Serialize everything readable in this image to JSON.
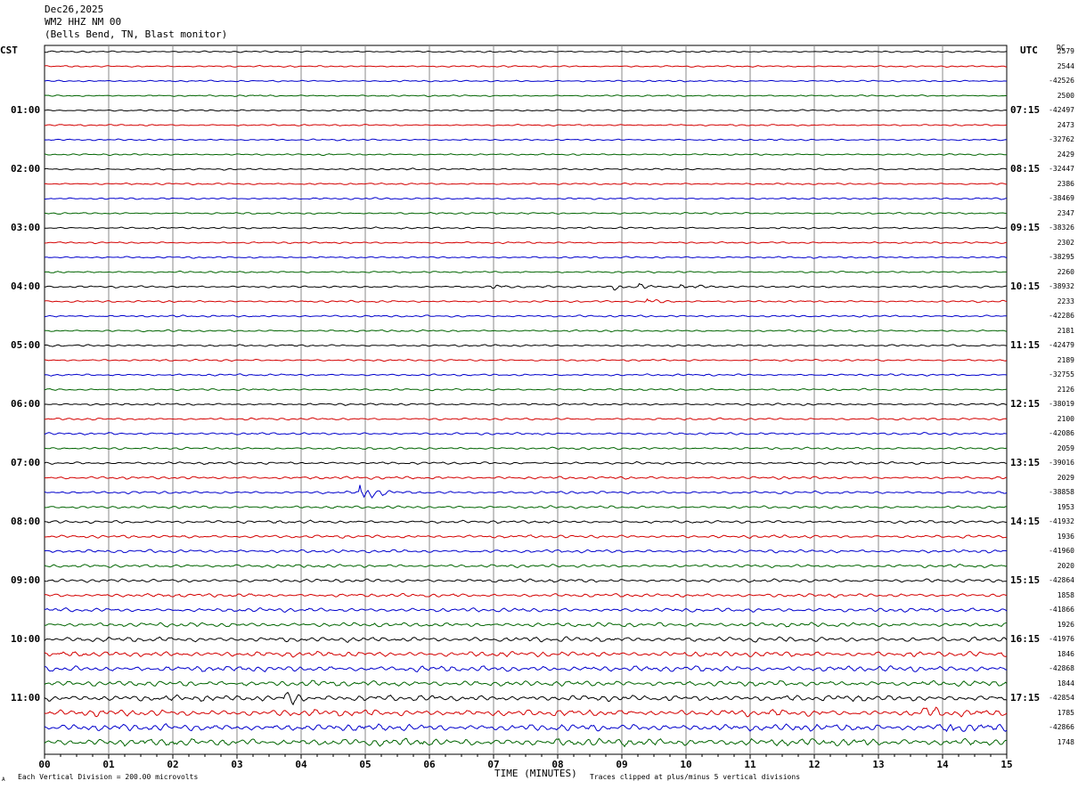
{
  "header": {
    "date": "Dec26,2025",
    "station": "WM2 HHZ NM 00",
    "location": "(Bells Bend, TN, Blast monitor)"
  },
  "labels": {
    "left_tz": "CST",
    "right_tz": "UTC",
    "dc": "DC",
    "x_axis": "TIME (MINUTES)",
    "scale_note": "Each Vertical Division =  200.00 microvolts",
    "clip_note": "Traces clipped at plus/minus 5 vertical divisions",
    "corner_mark": "A"
  },
  "colors": {
    "trace_cycle": [
      "#000000",
      "#d40000",
      "#0000cc",
      "#006400"
    ],
    "grid": "#888888"
  },
  "chart_data": {
    "type": "line",
    "title": "",
    "xlabel": "TIME (MINUTES)",
    "x_ticks": [
      "00",
      "01",
      "02",
      "03",
      "04",
      "05",
      "06",
      "07",
      "08",
      "09",
      "10",
      "11",
      "12",
      "13",
      "14",
      "15"
    ],
    "xlim": [
      0,
      15
    ],
    "rows": 48,
    "minutes_per_row": 15,
    "left_time_labels": [
      "01:00",
      "02:00",
      "03:00",
      "04:00",
      "05:00",
      "06:00",
      "07:00",
      "08:00",
      "09:00",
      "10:00",
      "11:00"
    ],
    "right_time_labels": [
      "07:15",
      "08:15",
      "09:15",
      "10:15",
      "11:15",
      "12:15",
      "13:15",
      "14:15",
      "15:15",
      "16:15",
      "17:15"
    ],
    "hour_label_rows": [
      4,
      8,
      12,
      16,
      20,
      24,
      28,
      32,
      36,
      40,
      44
    ],
    "dc_offsets": [
      "2579",
      "2544",
      "-42526",
      "2500",
      "-42497",
      "2473",
      "-32762",
      "2429",
      "-32447",
      "2386",
      "-38469",
      "2347",
      "-38326",
      "2302",
      "-38295",
      "2260",
      "-38932",
      "2233",
      "-42286",
      "2181",
      "-42479",
      "2189",
      "-32755",
      "2126",
      "-38019",
      "2100",
      "-42086",
      "2059",
      "-39016",
      "2029",
      "-38858",
      "1953",
      "-41932",
      "1936",
      "-41960",
      "2020",
      "-42864",
      "1858",
      "-41866",
      "1926",
      "-41976",
      "1846",
      "-42868",
      "1844",
      "-42854",
      "1785",
      "-42866",
      "1748"
    ],
    "amplitude_scale": [
      0.18,
      0.18,
      0.18,
      0.18,
      0.18,
      0.18,
      0.18,
      0.18,
      0.2,
      0.2,
      0.2,
      0.2,
      0.2,
      0.2,
      0.2,
      0.2,
      0.22,
      0.22,
      0.22,
      0.22,
      0.22,
      0.22,
      0.22,
      0.22,
      0.24,
      0.24,
      0.26,
      0.26,
      0.28,
      0.3,
      0.3,
      0.3,
      0.32,
      0.34,
      0.36,
      0.36,
      0.38,
      0.4,
      0.45,
      0.5,
      0.55,
      0.6,
      0.65,
      0.65,
      0.7,
      0.75,
      0.8,
      0.85
    ],
    "events": [
      {
        "row": 16,
        "minute": 7.0,
        "amp": 0.6
      },
      {
        "row": 16,
        "minute": 8.9,
        "amp": 0.7
      },
      {
        "row": 16,
        "minute": 9.3,
        "amp": 0.6
      },
      {
        "row": 16,
        "minute": 9.95,
        "amp": 0.8
      },
      {
        "row": 17,
        "minute": 9.4,
        "amp": 0.8
      },
      {
        "row": 30,
        "minute": 4.95,
        "amp": 3.0
      },
      {
        "row": 44,
        "minute": 3.8,
        "amp": 1.6
      },
      {
        "row": 45,
        "minute": 13.7,
        "amp": 1.4
      },
      {
        "row": 46,
        "minute": 14.1,
        "amp": 1.0
      }
    ]
  }
}
